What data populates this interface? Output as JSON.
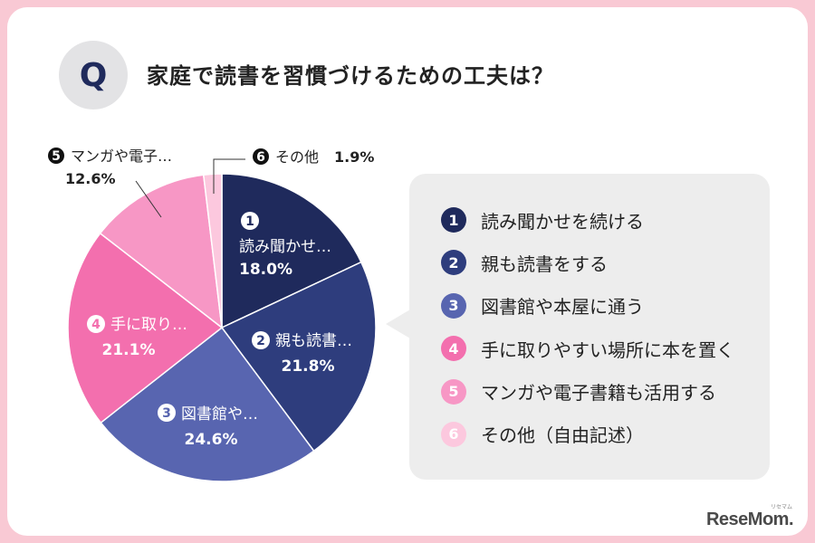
{
  "question": {
    "badge": "Q",
    "title": "家庭で読書を習慣づけるための工夫は？"
  },
  "chart_data": {
    "type": "pie",
    "start": "top, clockwise",
    "slices": [
      {
        "num": "1",
        "short_label": "読み聞かせ…",
        "label": "読み聞かせを続ける",
        "value": 18.0,
        "value_text": "18.0%",
        "color": "#1f2a5c",
        "label_color": "#ffffff"
      },
      {
        "num": "2",
        "short_label": "親も読書…",
        "label": "親も読書をする",
        "value": 21.8,
        "value_text": "21.8%",
        "color": "#2e3d7d",
        "label_color": "#ffffff"
      },
      {
        "num": "3",
        "short_label": "図書館や…",
        "label": "図書館や本屋に通う",
        "value": 24.6,
        "value_text": "24.6%",
        "color": "#5865b0",
        "label_color": "#ffffff"
      },
      {
        "num": "4",
        "short_label": "手に取り…",
        "label": "手に取りやすい場所に本を置く",
        "value": 21.1,
        "value_text": "21.1%",
        "color": "#f36fae",
        "label_color": "#ffffff"
      },
      {
        "num": "5",
        "short_label": "マンガや電子…",
        "label": "マンガや電子書籍も活用する",
        "value": 12.6,
        "value_text": "12.6%",
        "color": "#f797c5",
        "label_color": "#222222"
      },
      {
        "num": "6",
        "short_label": "その他",
        "label": "その他（自由記述）",
        "value": 1.9,
        "value_text": "1.9%",
        "color": "#fcc8de",
        "label_color": "#222222"
      }
    ]
  },
  "brand": {
    "name": "ReseMom.",
    "sub": "リセマム"
  }
}
